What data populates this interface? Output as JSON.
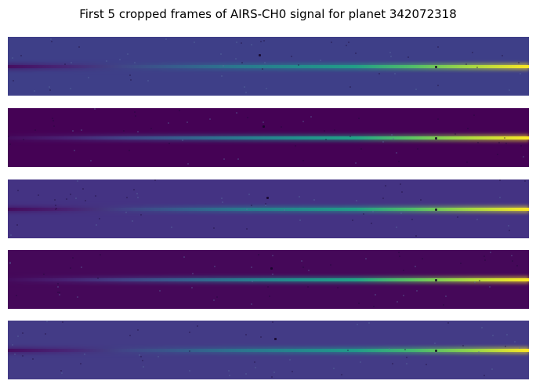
{
  "chart_data": {
    "type": "heatmap",
    "title": "First 5 cropped frames of AIRS-CH0 signal for planet 342072318",
    "colormap": "viridis",
    "axes_visible": false,
    "frames": [
      {
        "index": 1,
        "background": "#3e3f88",
        "trace_intensity": [
          0.05,
          0.14,
          0.26,
          0.38,
          0.5,
          0.6,
          0.7,
          0.82,
          0.92,
          1.0
        ]
      },
      {
        "index": 2,
        "background": "#450255",
        "trace_intensity": [
          0.04,
          0.12,
          0.24,
          0.37,
          0.5,
          0.62,
          0.72,
          0.84,
          0.93,
          1.0
        ]
      },
      {
        "index": 3,
        "background": "#443383",
        "trace_intensity": [
          0.04,
          0.12,
          0.24,
          0.37,
          0.5,
          0.6,
          0.7,
          0.82,
          0.92,
          1.0
        ]
      },
      {
        "index": 4,
        "background": "#450859",
        "trace_intensity": [
          0.04,
          0.12,
          0.24,
          0.37,
          0.5,
          0.62,
          0.72,
          0.84,
          0.93,
          1.0
        ]
      },
      {
        "index": 5,
        "background": "#433b86",
        "trace_intensity": [
          0.05,
          0.13,
          0.25,
          0.36,
          0.48,
          0.58,
          0.68,
          0.8,
          0.9,
          1.0
        ]
      }
    ]
  }
}
